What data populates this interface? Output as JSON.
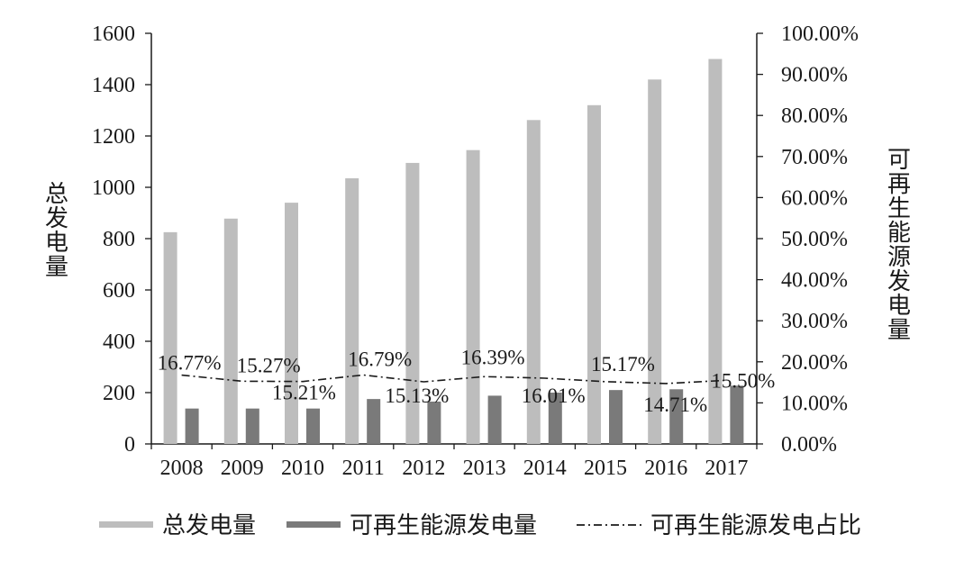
{
  "chart_data": {
    "type": "bar",
    "categories": [
      "2008",
      "2009",
      "2010",
      "2011",
      "2012",
      "2013",
      "2014",
      "2015",
      "2016",
      "2017"
    ],
    "series": [
      {
        "name": "总发电量",
        "axis": "left",
        "kind": "bar",
        "color": "#bdbdbd",
        "values": [
          825,
          878,
          940,
          1035,
          1095,
          1145,
          1262,
          1320,
          1420,
          1500
        ]
      },
      {
        "name": "可再生能源发电量",
        "axis": "left",
        "kind": "bar",
        "color": "#7a7a7a",
        "values": [
          138,
          138,
          138,
          175,
          165,
          188,
          200,
          210,
          213,
          227
        ]
      },
      {
        "name": "可再生能源发电占比",
        "axis": "right",
        "kind": "line",
        "style": "dash-dot",
        "color": "#1a1a1a",
        "values": [
          16.77,
          15.27,
          15.21,
          16.79,
          15.13,
          16.39,
          16.01,
          15.17,
          14.71,
          15.5
        ],
        "labels": [
          "16.77%",
          "15.27%",
          "15.21%",
          "16.79%",
          "15.13%",
          "16.39%",
          "16.01%",
          "15.17%",
          "14.71%",
          "15.50%"
        ]
      }
    ],
    "left_axis": {
      "label": "总发电量",
      "range": [
        0,
        1600
      ],
      "ticks": [
        "0",
        "200",
        "400",
        "600",
        "800",
        "1000",
        "1200",
        "1400",
        "1600"
      ]
    },
    "right_axis": {
      "label": "可再生能源发电量",
      "range": [
        0,
        100
      ],
      "ticks": [
        "0.00%",
        "10.00%",
        "20.00%",
        "30.00%",
        "40.00%",
        "50.00%",
        "60.00%",
        "70.00%",
        "80.00%",
        "90.00%",
        "100.00%"
      ]
    },
    "legend": {
      "placement": "bottom",
      "items": [
        "总发电量",
        "可再生能源发电量",
        "可再生能源发电占比"
      ]
    },
    "grid": false
  }
}
